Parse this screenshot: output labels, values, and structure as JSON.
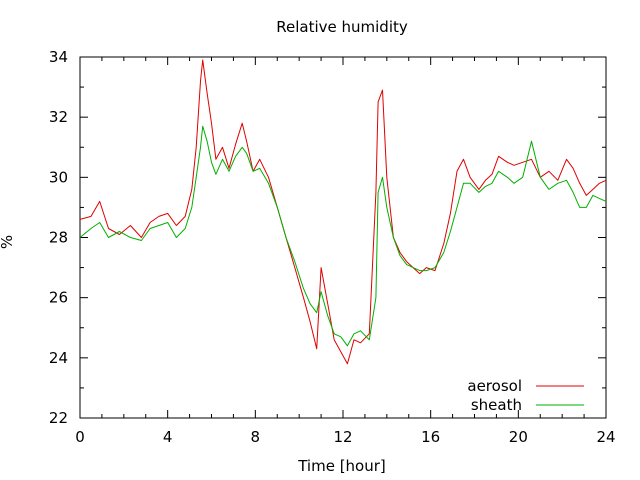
{
  "chart_data": {
    "type": "line",
    "title": "Relative humidity",
    "xlabel": "Time [hour]",
    "ylabel": "%",
    "xlim": [
      0,
      24
    ],
    "ylim": [
      22,
      34
    ],
    "x_ticks": [
      0,
      4,
      8,
      12,
      16,
      20,
      24
    ],
    "y_ticks": [
      22,
      24,
      26,
      28,
      30,
      32,
      34
    ],
    "legend_position": "bottom-right",
    "grid": false,
    "series": [
      {
        "name": "aerosol",
        "color": "#e00000",
        "x": [
          0,
          0.5,
          0.9,
          1.3,
          1.8,
          2.3,
          2.8,
          3.2,
          3.6,
          4.0,
          4.4,
          4.8,
          5.1,
          5.3,
          5.5,
          5.6,
          5.8,
          6.0,
          6.2,
          6.5,
          6.8,
          7.1,
          7.4,
          7.6,
          7.9,
          8.2,
          8.6,
          9.0,
          9.4,
          9.8,
          10.2,
          10.5,
          10.8,
          11.0,
          11.3,
          11.6,
          11.9,
          12.2,
          12.5,
          12.8,
          13.2,
          13.5,
          13.6,
          13.8,
          14.0,
          14.3,
          14.6,
          14.9,
          15.2,
          15.5,
          15.8,
          16.2,
          16.6,
          16.9,
          17.2,
          17.5,
          17.8,
          18.2,
          18.5,
          18.8,
          19.1,
          19.5,
          19.8,
          20.2,
          20.6,
          21.0,
          21.4,
          21.8,
          22.2,
          22.5,
          22.8,
          23.1,
          23.4,
          23.7,
          24.0
        ],
        "values": [
          28.6,
          28.7,
          29.2,
          28.3,
          28.1,
          28.4,
          28.0,
          28.5,
          28.7,
          28.8,
          28.4,
          28.7,
          29.6,
          31.0,
          33.2,
          33.9,
          32.8,
          31.8,
          30.6,
          31.0,
          30.3,
          31.1,
          31.8,
          31.2,
          30.2,
          30.6,
          30.0,
          29.0,
          28.0,
          27.0,
          26.0,
          25.2,
          24.3,
          27.0,
          25.8,
          24.6,
          24.2,
          23.8,
          24.6,
          24.5,
          24.8,
          29.5,
          32.5,
          32.9,
          30.0,
          28.0,
          27.5,
          27.2,
          27.0,
          26.8,
          27.0,
          26.9,
          27.8,
          28.8,
          30.2,
          30.6,
          30.0,
          29.6,
          29.9,
          30.1,
          30.7,
          30.5,
          30.4,
          30.5,
          30.6,
          30.0,
          30.2,
          29.9,
          30.6,
          30.3,
          29.8,
          29.4,
          29.6,
          29.8,
          29.9
        ]
      },
      {
        "name": "sheath",
        "color": "#00b000",
        "x": [
          0,
          0.5,
          0.9,
          1.3,
          1.8,
          2.3,
          2.8,
          3.2,
          3.6,
          4.0,
          4.4,
          4.8,
          5.1,
          5.3,
          5.5,
          5.6,
          5.8,
          6.0,
          6.2,
          6.5,
          6.8,
          7.1,
          7.4,
          7.6,
          7.9,
          8.2,
          8.6,
          9.0,
          9.4,
          9.8,
          10.2,
          10.5,
          10.8,
          11.0,
          11.3,
          11.6,
          11.9,
          12.2,
          12.5,
          12.8,
          13.2,
          13.5,
          13.6,
          13.8,
          14.0,
          14.3,
          14.6,
          14.9,
          15.2,
          15.5,
          15.8,
          16.2,
          16.6,
          16.9,
          17.2,
          17.5,
          17.8,
          18.2,
          18.5,
          18.8,
          19.1,
          19.5,
          19.8,
          20.2,
          20.6,
          21.0,
          21.4,
          21.8,
          22.2,
          22.5,
          22.8,
          23.1,
          23.4,
          23.7,
          24.0
        ],
        "values": [
          28.0,
          28.3,
          28.5,
          28.0,
          28.2,
          28.0,
          27.9,
          28.3,
          28.4,
          28.5,
          28.0,
          28.3,
          29.0,
          30.0,
          31.0,
          31.7,
          31.2,
          30.5,
          30.1,
          30.6,
          30.2,
          30.7,
          31.0,
          30.8,
          30.2,
          30.3,
          29.8,
          29.0,
          28.0,
          27.2,
          26.3,
          25.8,
          25.5,
          26.2,
          25.4,
          24.8,
          24.7,
          24.4,
          24.8,
          24.9,
          24.6,
          26.0,
          29.5,
          30.0,
          29.0,
          28.0,
          27.4,
          27.1,
          27.0,
          26.9,
          26.9,
          27.0,
          27.5,
          28.2,
          29.0,
          29.8,
          29.8,
          29.5,
          29.7,
          29.8,
          30.2,
          30.0,
          29.8,
          30.0,
          31.2,
          30.0,
          29.6,
          29.8,
          29.9,
          29.5,
          29.0,
          29.0,
          29.4,
          29.3,
          29.2
        ]
      }
    ]
  }
}
